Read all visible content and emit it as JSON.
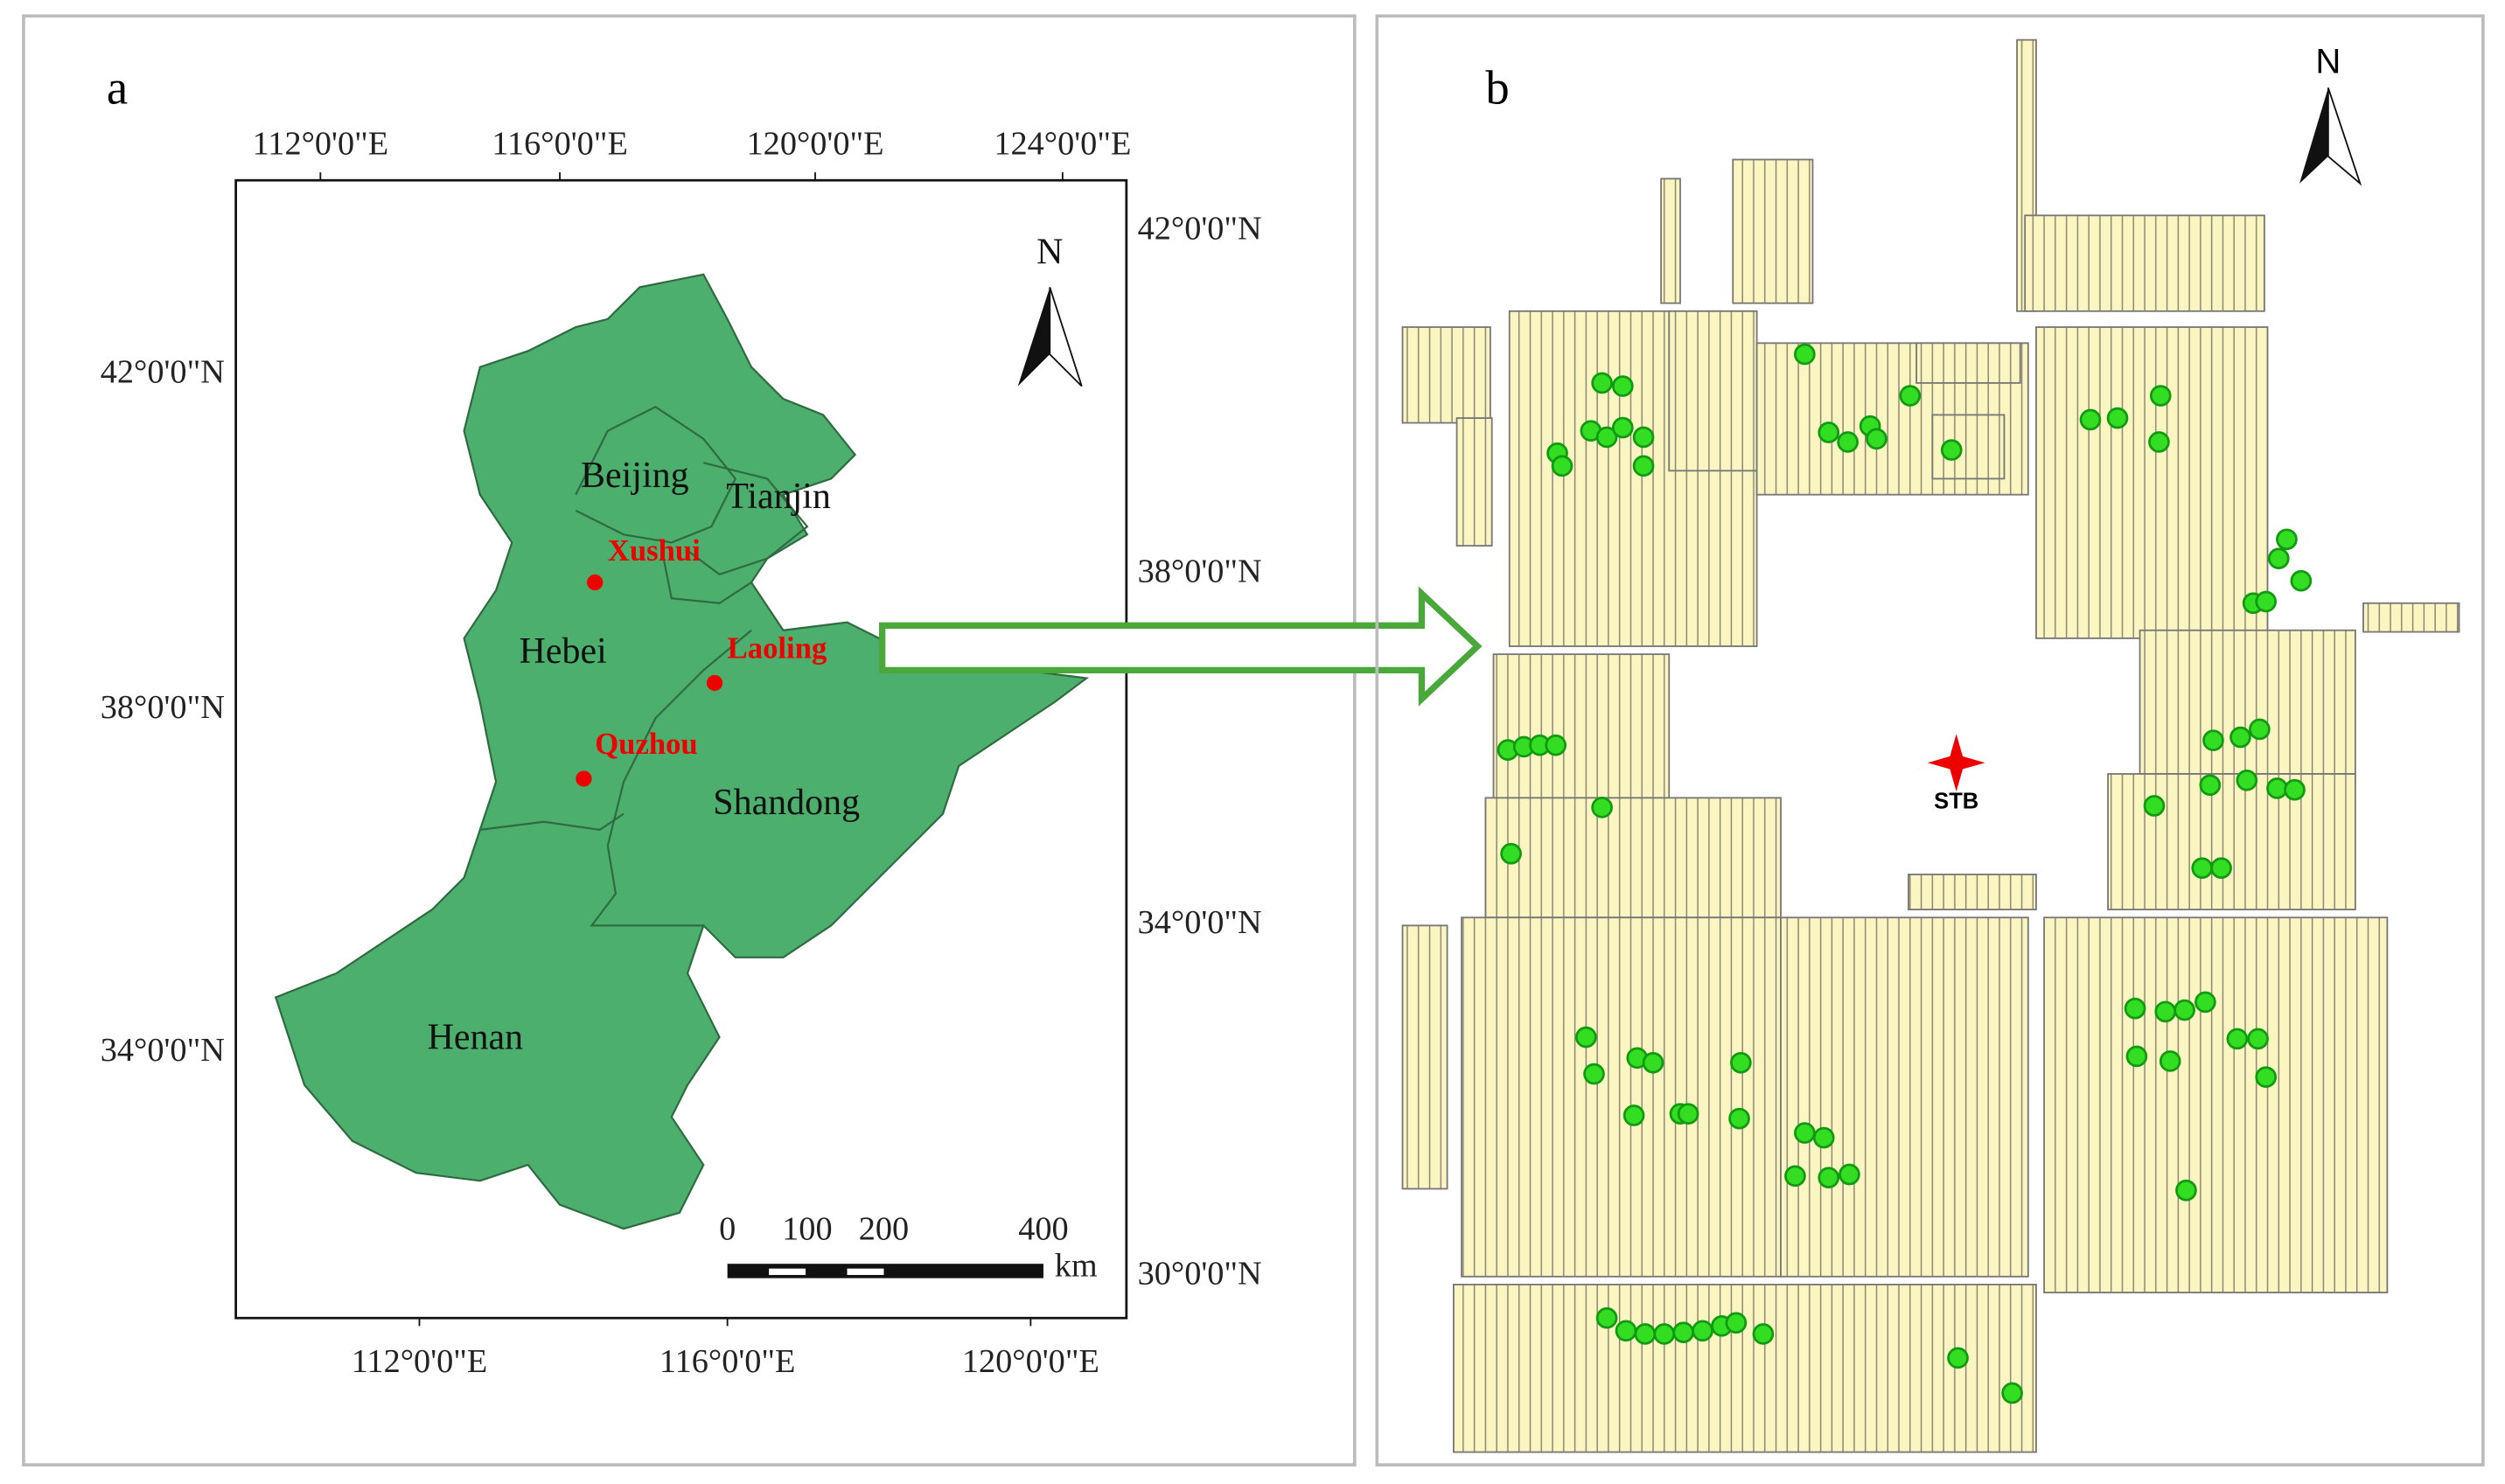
{
  "panel_a": {
    "label": "a",
    "top_axis": [
      "112°0'0\"E",
      "116°0'0\"E",
      "120°0'0\"E",
      "124°0'0\"E"
    ],
    "right_axis": [
      "42°0'0\"N",
      "38°0'0\"N",
      "34°0'0\"N",
      "30°0'0\"N"
    ],
    "left_axis": [
      "42°0'0\"N",
      "38°0'0\"N",
      "34°0'0\"N"
    ],
    "bottom_axis": [
      "112°0'0\"E",
      "116°0'0\"E",
      "120°0'0\"E"
    ],
    "regions": [
      "Beijing",
      "Tianjin",
      "Hebei",
      "Shandong",
      "Henan"
    ],
    "sites": [
      "Xushui",
      "Laoling",
      "Quzhou"
    ],
    "north": "N",
    "scale": {
      "ticks": [
        0,
        100,
        200,
        400
      ],
      "unit": "km"
    }
  },
  "panel_b": {
    "label": "b",
    "north": "N",
    "station": "STB"
  }
}
